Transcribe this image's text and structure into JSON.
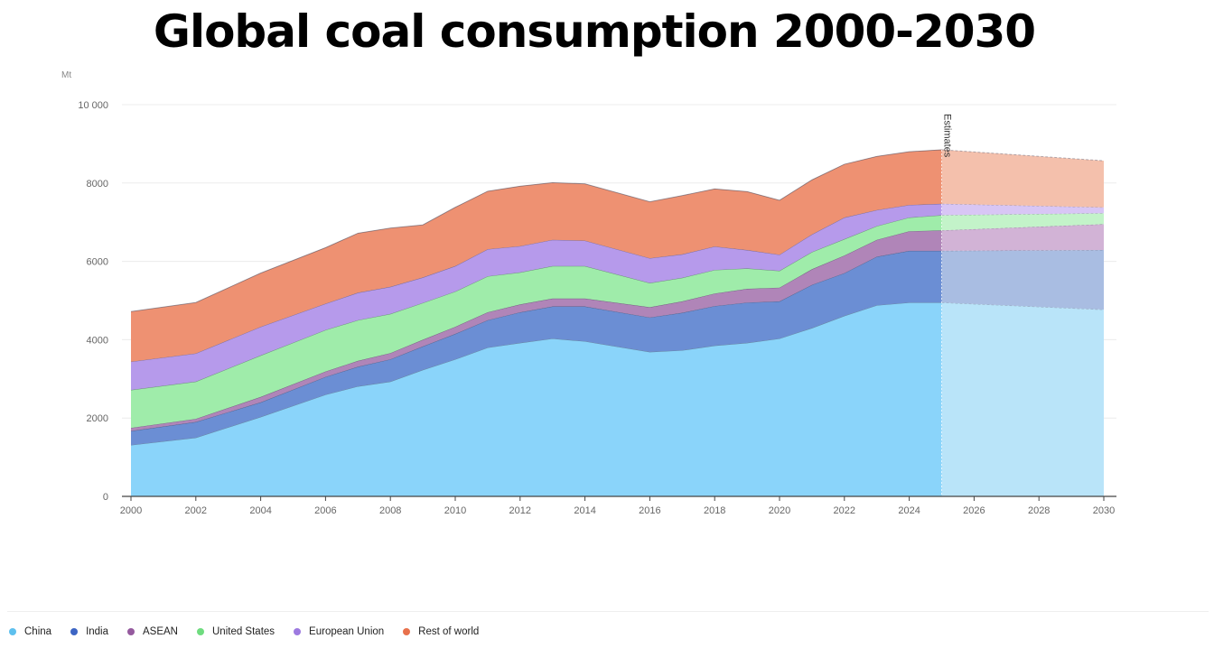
{
  "title": "Global coal consumption 2000-2030",
  "chart_data": {
    "type": "area",
    "stacked": true,
    "title": "Global coal consumption 2000-2030",
    "ylabel": "Mt",
    "xlabel": "",
    "ylim": [
      0,
      10000
    ],
    "xlim": [
      2000,
      2030
    ],
    "y_ticks": [
      0,
      2000,
      4000,
      6000,
      8000,
      10000
    ],
    "y_tick_labels": [
      "0",
      "2000",
      "4000",
      "6000",
      "8000",
      "10 000"
    ],
    "x_ticks": [
      2000,
      2002,
      2004,
      2006,
      2008,
      2010,
      2012,
      2014,
      2016,
      2018,
      2020,
      2022,
      2024,
      2026,
      2028,
      2030
    ],
    "x_tick_labels": [
      "2000",
      "2002",
      "2004",
      "2006",
      "2008",
      "2010",
      "2012",
      "2014",
      "2016",
      "2018",
      "2020",
      "2022",
      "2024",
      "2026",
      "2028",
      "2030"
    ],
    "grid": true,
    "legend_position": "bottom-left",
    "estimates_start": 2025,
    "annotation": "Estimates",
    "x": [
      2000,
      2002,
      2004,
      2006,
      2007,
      2008,
      2009,
      2010,
      2011,
      2012,
      2013,
      2014,
      2016,
      2017,
      2018,
      2019,
      2020,
      2021,
      2022,
      2023,
      2024,
      2025,
      2030
    ],
    "series": [
      {
        "name": "China",
        "color": "#8ad4fa",
        "est_color": "#b9e4f9",
        "values": [
          1310,
          1500,
          2030,
          2600,
          2810,
          2930,
          3230,
          3500,
          3800,
          3920,
          4030,
          3960,
          3690,
          3730,
          3850,
          3920,
          4030,
          4300,
          4610,
          4880,
          4950,
          4950,
          4770
        ]
      },
      {
        "name": "India",
        "color": "#6b8ed4",
        "est_color": "#a9bde2",
        "values": [
          360,
          400,
          370,
          450,
          500,
          570,
          600,
          650,
          700,
          780,
          820,
          890,
          880,
          960,
          1010,
          1030,
          950,
          1100,
          1090,
          1240,
          1320,
          1320,
          1520
        ]
      },
      {
        "name": "ASEAN",
        "color": "#b085b8",
        "est_color": "#d2b3d6",
        "values": [
          80,
          80,
          140,
          140,
          150,
          160,
          170,
          180,
          200,
          200,
          200,
          200,
          260,
          290,
          320,
          350,
          350,
          400,
          450,
          430,
          500,
          520,
          660
        ]
      },
      {
        "name": "United States",
        "color": "#9fecaa",
        "est_color": "#c3f3c9",
        "values": [
          970,
          950,
          1060,
          1060,
          1040,
          1000,
          940,
          900,
          920,
          820,
          830,
          830,
          620,
          600,
          600,
          520,
          430,
          440,
          420,
          350,
          350,
          390,
          280
        ]
      },
      {
        "name": "European Union",
        "color": "#b69aeb",
        "est_color": "#d8c6f5",
        "values": [
          720,
          720,
          730,
          670,
          700,
          690,
          650,
          650,
          690,
          670,
          670,
          650,
          630,
          600,
          600,
          470,
          410,
          450,
          550,
          410,
          320,
          290,
          150
        ]
      },
      {
        "name": "Rest of world",
        "color": "#ee9172",
        "est_color": "#f4c0ac",
        "values": [
          1280,
          1300,
          1370,
          1430,
          1520,
          1500,
          1340,
          1500,
          1480,
          1530,
          1460,
          1450,
          1440,
          1500,
          1470,
          1490,
          1390,
          1390,
          1360,
          1370,
          1360,
          1380,
          1190
        ]
      }
    ]
  },
  "legend": [
    {
      "label": "China",
      "color": "#5ec0ee"
    },
    {
      "label": "India",
      "color": "#3d65c4"
    },
    {
      "label": "ASEAN",
      "color": "#955a9e"
    },
    {
      "label": "United States",
      "color": "#6fdc7f"
    },
    {
      "label": "European Union",
      "color": "#9d7ae0"
    },
    {
      "label": "Rest of world",
      "color": "#e8714c"
    }
  ]
}
